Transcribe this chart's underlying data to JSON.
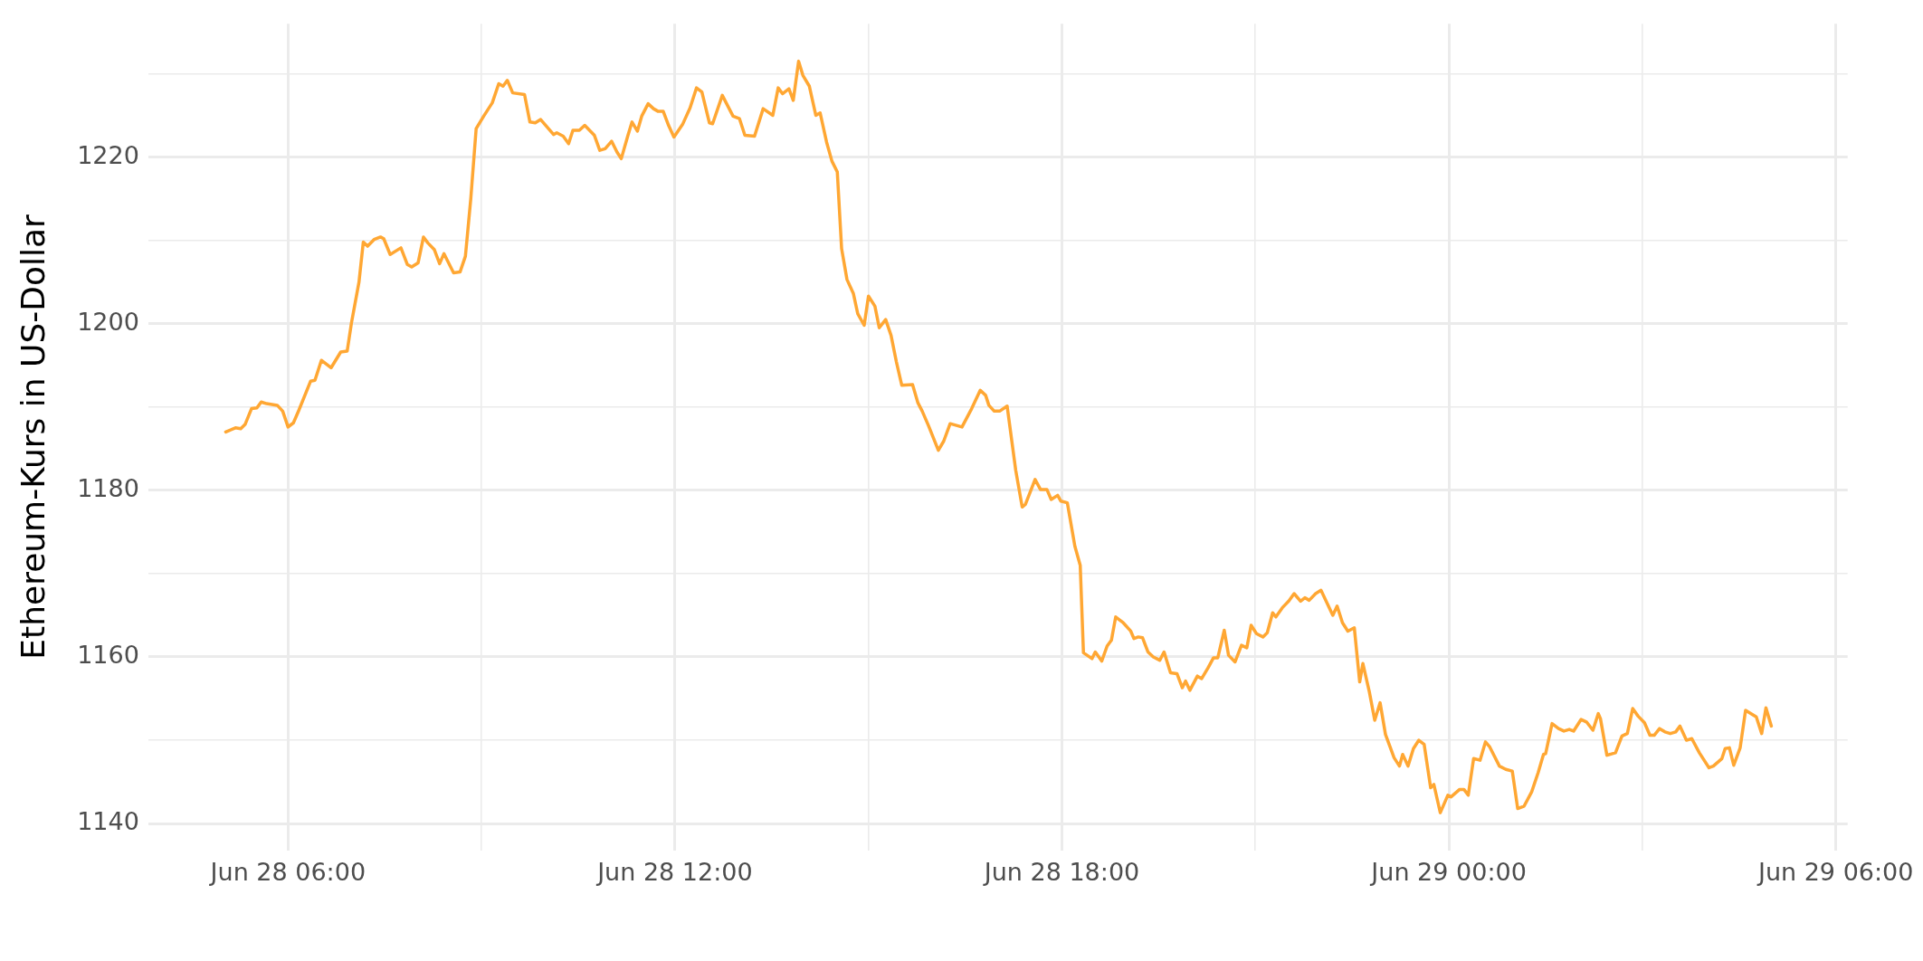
{
  "chart_data": {
    "type": "line",
    "ylabel": "Ethereum-Kurs in US-Dollar",
    "color": "#ffa733",
    "grid": true,
    "legend": false,
    "marker": "none",
    "line_style": "solid",
    "xlim": [
      "--06-28T03:50",
      "--06-29T06:11"
    ],
    "xticks": [
      {
        "value": "--06-28T06:00",
        "label": "Jun 28 06:00"
      },
      {
        "value": "--06-28T09:00",
        "label": null
      },
      {
        "value": "--06-28T12:00",
        "label": "Jun 28 12:00"
      },
      {
        "value": "--06-28T15:00",
        "label": null
      },
      {
        "value": "--06-28T18:00",
        "label": "Jun 28 18:00"
      },
      {
        "value": "--06-28T21:00",
        "label": null
      },
      {
        "value": "--06-29T00:00",
        "label": "Jun 29 00:00"
      },
      {
        "value": "--06-29T03:00",
        "label": null
      },
      {
        "value": "--06-29T06:00",
        "label": "Jun 29 06:00"
      }
    ],
    "ylim": [
      1136.8,
      1236
    ],
    "yticks": [
      1140,
      {
        "value": 1150,
        "label": null
      },
      1160,
      {
        "value": 1170,
        "label": null
      },
      1180,
      {
        "value": 1190,
        "label": null
      },
      1200,
      {
        "value": 1210,
        "label": null
      },
      1220,
      {
        "value": 1230,
        "label": null
      }
    ],
    "x": [
      "--06-28T05:02",
      "--06-28T05:11",
      "--06-28T05:16",
      "--06-28T05:20",
      "--06-28T05:26",
      "--06-28T05:31",
      "--06-28T05:35",
      "--06-28T05:40",
      "--06-28T05:50",
      "--06-28T05:55",
      "--06-28T06:00",
      "--06-28T06:05",
      "--06-28T06:10",
      "--06-28T06:21",
      "--06-28T06:25",
      "--06-28T06:31",
      "--06-28T06:40",
      "--06-28T06:49",
      "--06-28T06:55",
      "--06-28T06:59",
      "--06-28T07:06",
      "--06-28T07:10",
      "--06-28T07:14",
      "--06-28T07:20",
      "--06-28T07:26",
      "--06-28T07:29",
      "--06-28T07:35",
      "--06-28T07:45",
      "--06-28T07:51",
      "--06-28T07:55",
      "--06-28T08:01",
      "--06-28T08:06",
      "--06-28T08:10",
      "--06-28T08:16",
      "--06-28T08:21",
      "--06-28T08:25",
      "--06-28T08:34",
      "--06-28T08:40",
      "--06-28T08:45",
      "--06-28T08:50",
      "--06-28T08:55",
      "--06-28T09:02",
      "--06-28T09:10",
      "--06-28T09:16",
      "--06-28T09:20",
      "--06-28T09:24",
      "--06-28T09:29",
      "--06-28T09:40",
      "--06-28T09:45",
      "--06-28T09:50",
      "--06-28T09:55",
      "--06-28T10:07",
      "--06-28T10:10",
      "--06-28T10:16",
      "--06-28T10:21",
      "--06-28T10:25",
      "--06-28T10:31",
      "--06-28T10:36",
      "--06-28T10:45",
      "--06-28T10:50",
      "--06-28T10:55",
      "--06-28T11:01",
      "--06-28T11:06",
      "--06-28T11:10",
      "--06-28T11:16",
      "--06-28T11:20",
      "--06-28T11:25",
      "--06-28T11:29",
      "--06-28T11:35",
      "--06-28T11:40",
      "--06-28T11:44",
      "--06-28T11:49",
      "--06-28T11:54",
      "--06-28T11:59",
      "--06-28T12:07",
      "--06-28T12:14",
      "--06-28T12:20",
      "--06-28T12:25",
      "--06-28T12:32",
      "--06-28T12:35",
      "--06-28T12:44",
      "--06-28T12:54",
      "--06-28T13:00",
      "--06-28T13:05",
      "--06-28T13:14",
      "--06-28T13:22",
      "--06-28T13:31",
      "--06-28T13:36",
      "--06-28T13:40",
      "--06-28T13:46",
      "--06-28T13:50",
      "--06-28T13:55",
      "--06-28T13:59",
      "--06-28T14:05",
      "--06-28T14:11",
      "--06-28T14:15",
      "--06-28T14:21",
      "--06-28T14:26",
      "--06-28T14:31",
      "--06-28T14:35",
      "--06-28T14:40",
      "--06-28T14:46",
      "--06-28T14:50",
      "--06-28T14:56",
      "--06-28T15:00",
      "--06-28T15:06",
      "--06-28T15:10",
      "--06-28T15:16",
      "--06-28T15:21",
      "--06-28T15:26",
      "--06-28T15:31",
      "--06-28T15:41",
      "--06-28T15:46",
      "--06-28T15:50",
      "--06-28T15:56",
      "--06-28T16:05",
      "--06-28T16:10",
      "--06-28T16:16",
      "--06-28T16:27",
      "--06-28T16:36",
      "--06-28T16:44",
      "--06-28T16:49",
      "--06-28T16:52",
      "--06-28T16:57",
      "--06-28T17:02",
      "--06-28T17:09",
      "--06-28T17:17",
      "--06-28T17:23",
      "--06-28T17:26",
      "--06-28T17:35",
      "--06-28T17:40",
      "--06-28T17:46",
      "--06-28T17:50",
      "--06-28T17:56",
      "--06-28T17:59",
      "--06-28T18:05",
      "--06-28T18:12",
      "--06-28T18:17",
      "--06-28T18:20",
      "--06-28T18:28",
      "--06-28T18:31",
      "--06-28T18:37",
      "--06-28T18:42",
      "--06-28T18:46",
      "--06-28T18:50",
      "--06-28T18:57",
      "--06-28T19:04",
      "--06-28T19:07",
      "--06-28T19:11",
      "--06-28T19:15",
      "--06-28T19:20",
      "--06-28T19:25",
      "--06-28T19:31",
      "--06-28T19:35",
      "--06-28T19:41",
      "--06-28T19:47",
      "--06-28T19:52",
      "--06-28T19:55",
      "--06-28T19:59",
      "--06-28T20:06",
      "--06-28T20:10",
      "--06-28T20:16",
      "--06-28T20:21",
      "--06-28T20:25",
      "--06-28T20:31",
      "--06-28T20:35",
      "--06-28T20:41",
      "--06-28T20:47",
      "--06-28T20:52",
      "--06-28T20:56",
      "--06-28T21:01",
      "--06-28T21:07",
      "--06-28T21:11",
      "--06-28T21:16",
      "--06-28T21:19",
      "--06-28T21:25",
      "--06-28T21:31",
      "--06-28T21:36",
      "--06-28T21:42",
      "--06-28T21:46",
      "--06-28T21:50",
      "--06-28T21:56",
      "--06-28T22:01",
      "--06-28T22:12",
      "--06-28T22:16",
      "--06-28T22:21",
      "--06-28T22:26",
      "--06-28T22:32",
      "--06-28T22:37",
      "--06-28T22:40",
      "--06-28T22:46",
      "--06-28T22:51",
      "--06-28T22:56",
      "--06-28T23:01",
      "--06-28T23:09",
      "--06-28T23:14",
      "--06-28T23:17",
      "--06-28T23:22",
      "--06-28T23:27",
      "--06-28T23:32",
      "--06-28T23:37",
      "--06-28T23:43",
      "--06-28T23:46",
      "--06-28T23:52",
      "--06-28T23:59",
      "--06-29T00:02",
      "--06-29T00:10",
      "--06-29T00:14",
      "--06-29T00:18",
      "--06-29T00:23",
      "--06-29T00:29",
      "--06-29T00:34",
      "--06-29T00:38",
      "--06-29T00:47",
      "--06-29T00:53",
      "--06-29T00:59",
      "--06-29T01:04",
      "--06-29T01:10",
      "--06-29T01:17",
      "--06-29T01:23",
      "--06-29T01:28",
      "--06-29T01:30",
      "--06-29T01:36",
      "--06-29T01:42",
      "--06-29T01:47",
      "--06-29T01:52",
      "--06-29T01:56",
      "--06-29T02:03",
      "--06-29T02:08",
      "--06-29T02:14",
      "--06-29T02:19",
      "--06-29T02:21",
      "--06-29T02:27",
      "--06-29T02:35",
      "--06-29T02:41",
      "--06-29T02:46",
      "--06-29T02:51",
      "--06-29T02:56",
      "--06-29T03:02",
      "--06-29T03:07",
      "--06-29T03:11",
      "--06-29T03:16",
      "--06-29T03:21",
      "--06-29T03:26",
      "--06-29T03:31",
      "--06-29T03:35",
      "--06-29T03:41",
      "--06-29T03:46",
      "--06-29T03:53",
      "--06-29T04:02",
      "--06-29T04:06",
      "--06-29T04:14",
      "--06-29T04:17",
      "--06-29T04:21",
      "--06-29T04:25",
      "--06-29T04:31",
      "--06-29T04:36",
      "--06-29T04:46",
      "--06-29T04:51",
      "--06-29T04:55",
      "--06-29T05:00"
    ],
    "values": [
      1187.0,
      1187.5,
      1187.4,
      1187.9,
      1189.8,
      1189.9,
      1190.6,
      1190.4,
      1190.2,
      1189.5,
      1187.6,
      1188.1,
      1189.6,
      1193.1,
      1193.2,
      1195.6,
      1194.7,
      1196.6,
      1196.7,
      1200.1,
      1205.0,
      1209.8,
      1209.3,
      1210.1,
      1210.4,
      1210.2,
      1208.3,
      1209.1,
      1207.1,
      1206.8,
      1207.3,
      1210.4,
      1209.7,
      1208.9,
      1207.2,
      1208.4,
      1206.1,
      1206.2,
      1208.1,
      1215.0,
      1223.4,
      1224.9,
      1226.5,
      1228.8,
      1228.5,
      1229.2,
      1227.7,
      1227.5,
      1224.2,
      1224.1,
      1224.5,
      1222.7,
      1222.9,
      1222.5,
      1221.6,
      1223.2,
      1223.2,
      1223.8,
      1222.6,
      1220.8,
      1221.0,
      1221.9,
      1220.6,
      1219.8,
      1222.5,
      1224.2,
      1223.1,
      1224.9,
      1226.4,
      1225.8,
      1225.5,
      1225.5,
      1223.8,
      1222.4,
      1223.9,
      1225.9,
      1228.3,
      1227.8,
      1224.1,
      1224.0,
      1227.4,
      1224.9,
      1224.6,
      1222.6,
      1222.5,
      1225.8,
      1225.0,
      1228.3,
      1227.6,
      1228.2,
      1226.8,
      1231.5,
      1229.8,
      1228.5,
      1225.0,
      1225.3,
      1221.8,
      1219.5,
      1218.2,
      1209.0,
      1205.3,
      1203.6,
      1201.2,
      1199.8,
      1203.3,
      1202.1,
      1199.5,
      1200.5,
      1198.6,
      1195.4,
      1192.6,
      1192.7,
      1190.5,
      1189.5,
      1187.7,
      1184.8,
      1185.9,
      1188.0,
      1187.6,
      1189.8,
      1192.0,
      1191.4,
      1190.2,
      1189.5,
      1189.5,
      1190.1,
      1182.4,
      1178.0,
      1178.3,
      1181.3,
      1180.1,
      1180.1,
      1178.9,
      1179.4,
      1178.7,
      1178.5,
      1173.3,
      1171.0,
      1160.5,
      1159.8,
      1160.6,
      1159.5,
      1161.3,
      1162.0,
      1164.8,
      1164.1,
      1163.1,
      1162.2,
      1162.4,
      1162.3,
      1160.6,
      1160.0,
      1159.6,
      1160.6,
      1158.1,
      1158.0,
      1156.3,
      1157.1,
      1156.0,
      1157.7,
      1157.4,
      1158.7,
      1159.9,
      1159.9,
      1163.2,
      1160.2,
      1159.4,
      1161.4,
      1161.1,
      1163.8,
      1162.8,
      1162.4,
      1162.9,
      1165.3,
      1164.8,
      1165.9,
      1166.7,
      1167.6,
      1166.7,
      1167.1,
      1166.8,
      1167.6,
      1168.0,
      1165.0,
      1166.1,
      1164.1,
      1163.1,
      1163.5,
      1157.0,
      1159.2,
      1155.8,
      1152.4,
      1154.5,
      1150.7,
      1147.9,
      1146.9,
      1148.3,
      1146.9,
      1149.0,
      1150.0,
      1149.5,
      1144.3,
      1144.7,
      1141.3,
      1143.4,
      1143.2,
      1144.1,
      1144.1,
      1143.4,
      1147.8,
      1147.6,
      1149.8,
      1149.2,
      1146.9,
      1146.5,
      1146.3,
      1141.8,
      1142.1,
      1143.8,
      1146.1,
      1148.3,
      1148.4,
      1152.0,
      1151.4,
      1151.1,
      1151.3,
      1151.1,
      1152.5,
      1152.2,
      1151.2,
      1153.2,
      1152.6,
      1148.2,
      1148.5,
      1150.5,
      1150.8,
      1153.8,
      1152.9,
      1152.1,
      1150.6,
      1150.6,
      1151.4,
      1151.0,
      1150.8,
      1151.0,
      1151.7,
      1150.0,
      1150.2,
      1148.5,
      1146.7,
      1146.9,
      1147.8,
      1149.0,
      1149.1,
      1147.0,
      1149.1,
      1153.6,
      1152.8,
      1150.8,
      1153.9,
      1151.7
    ]
  }
}
